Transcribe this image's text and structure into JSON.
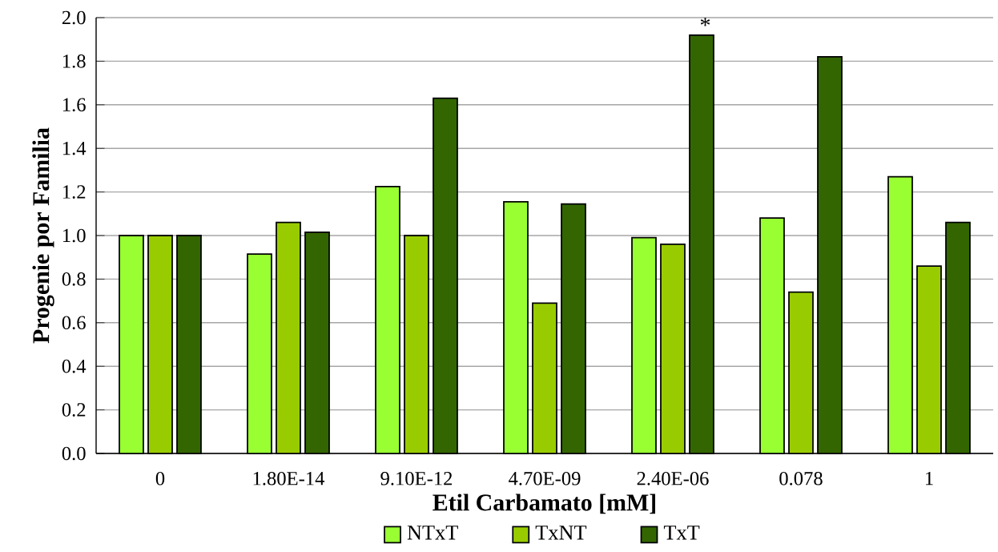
{
  "chart_data": {
    "type": "bar",
    "xlabel": "Etil Carbamato [mM]",
    "ylabel": "Progenie por Familia",
    "categories": [
      "0",
      "1.80E-14",
      "9.10E-12",
      "4.70E-09",
      "2.40E-06",
      "0.078",
      "1"
    ],
    "series": [
      {
        "name": "NTxT",
        "color": "#99ff33",
        "values": [
          1.0,
          0.915,
          1.225,
          1.155,
          0.99,
          1.08,
          1.27
        ]
      },
      {
        "name": "TxNT",
        "color": "#99cc00",
        "values": [
          1.0,
          1.06,
          1.0,
          0.69,
          0.96,
          0.74,
          0.86
        ]
      },
      {
        "name": "TxT",
        "color": "#336600",
        "values": [
          1.0,
          1.015,
          1.63,
          1.145,
          1.92,
          1.82,
          1.06
        ]
      }
    ],
    "ylim": [
      0,
      2.0
    ],
    "yticks": [
      {
        "value": 0,
        "label": "0.0"
      },
      {
        "value": 0.2,
        "label": "0.2"
      },
      {
        "value": 0.4,
        "label": "0.4"
      },
      {
        "value": 0.6,
        "label": "0.6"
      },
      {
        "value": 0.8,
        "label": "0.8"
      },
      {
        "value": 1.0,
        "label": "1.0"
      },
      {
        "value": 1.2,
        "label": "1.2"
      },
      {
        "value": 1.4,
        "label": "1.4"
      },
      {
        "value": 1.6,
        "label": "1.6"
      },
      {
        "value": 1.8,
        "label": "1.8"
      },
      {
        "value": 2.0,
        "label": "2.0"
      }
    ],
    "annotations": [
      "*"
    ],
    "grid": "y",
    "legend": "bottom"
  }
}
